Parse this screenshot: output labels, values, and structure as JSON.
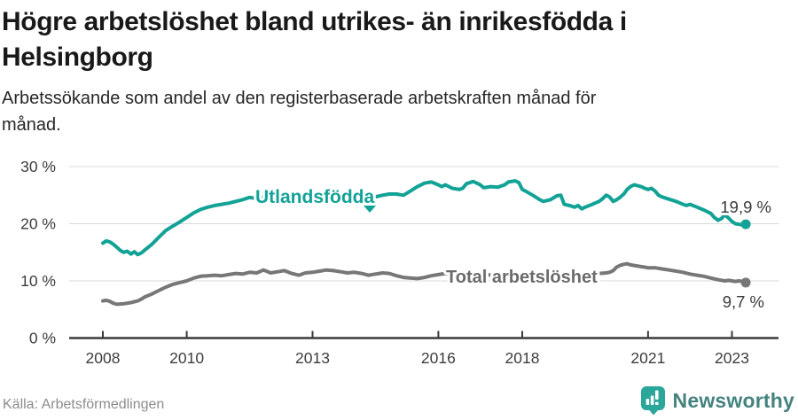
{
  "header": {
    "title_lines": [
      "Högre arbetslöshet bland utrikes- än inrikesfödda i",
      "Helsingborg"
    ],
    "subtitle_lines": [
      "Arbetssökande som andel av den registerbaserade arbetskraften månad för",
      "månad."
    ]
  },
  "footer": {
    "source": "Källa: Arbetsförmedlingen",
    "brand": "Newsworthy"
  },
  "colors": {
    "accent_teal": "#13a296",
    "neutral_gray": "#777777",
    "gray_label": "#6b6b6b",
    "grid": "#d8d8d8",
    "axis": "#3a3a3a",
    "tick_label": "#3d3d3d",
    "value_label": "#3a3a3a",
    "brand_icon_teal": "#2aa69b",
    "brand_text_teal": "#45837f"
  },
  "chart_data": {
    "type": "line",
    "title": "Högre arbetslöshet bland utrikes- än inrikesfödda i Helsingborg",
    "subtitle": "Arbetssökande som andel av den registerbaserade arbetskraften månad för månad.",
    "x_unit": "decimal_year",
    "xlim": [
      2007.2,
      2024.1
    ],
    "ylim": [
      0,
      31.4
    ],
    "grid": "horizontal",
    "legend_position": "inline-labels",
    "yticks": [
      {
        "value": 0,
        "label": "0 %"
      },
      {
        "value": 10,
        "label": "10 %"
      },
      {
        "value": 20,
        "label": "20 %"
      },
      {
        "value": 30,
        "label": "30 %"
      }
    ],
    "xticks": [
      {
        "value": 2008,
        "label": "2008"
      },
      {
        "value": 2010,
        "label": "2010"
      },
      {
        "value": 2013,
        "label": "2013"
      },
      {
        "value": 2016,
        "label": "2016"
      },
      {
        "value": 2018,
        "label": "2018"
      },
      {
        "value": 2021,
        "label": "2021"
      },
      {
        "value": 2023,
        "label": "2023"
      }
    ],
    "series": [
      {
        "name": "Utlandsfödda",
        "label": "Utlandsfödda",
        "end_label": "19,9 %",
        "end_value": 19.9,
        "color": "#13a296",
        "label_color": "#13a296",
        "points": [
          [
            2008.0,
            16.6
          ],
          [
            2008.08,
            17.0
          ],
          [
            2008.17,
            16.8
          ],
          [
            2008.25,
            16.4
          ],
          [
            2008.33,
            15.9
          ],
          [
            2008.42,
            15.3
          ],
          [
            2008.5,
            15.0
          ],
          [
            2008.58,
            15.2
          ],
          [
            2008.67,
            14.7
          ],
          [
            2008.75,
            15.1
          ],
          [
            2008.83,
            14.6
          ],
          [
            2008.92,
            14.9
          ],
          [
            2009.0,
            15.4
          ],
          [
            2009.17,
            16.4
          ],
          [
            2009.33,
            17.6
          ],
          [
            2009.5,
            18.8
          ],
          [
            2009.67,
            19.6
          ],
          [
            2009.83,
            20.3
          ],
          [
            2010.0,
            21.1
          ],
          [
            2010.17,
            21.9
          ],
          [
            2010.33,
            22.5
          ],
          [
            2010.5,
            22.9
          ],
          [
            2010.67,
            23.2
          ],
          [
            2010.83,
            23.4
          ],
          [
            2011.0,
            23.6
          ],
          [
            2011.17,
            23.9
          ],
          [
            2011.33,
            24.2
          ],
          [
            2011.5,
            24.6
          ],
          [
            2011.67,
            24.4
          ],
          [
            2011.83,
            24.7
          ],
          [
            2012.0,
            24.9
          ],
          [
            2012.17,
            25.1
          ],
          [
            2012.33,
            24.8
          ],
          [
            2012.5,
            25.0
          ],
          [
            2012.67,
            25.2
          ],
          [
            2012.83,
            24.9
          ],
          [
            2013.0,
            25.1
          ],
          [
            2013.17,
            24.8
          ],
          [
            2013.33,
            25.0
          ],
          [
            2013.5,
            24.9
          ],
          [
            2013.67,
            25.1
          ],
          [
            2013.83,
            24.7
          ],
          [
            2014.0,
            24.9
          ],
          [
            2014.17,
            24.6
          ],
          [
            2014.33,
            24.4
          ],
          [
            2014.5,
            24.7
          ],
          [
            2014.67,
            25.0
          ],
          [
            2014.83,
            25.2
          ],
          [
            2015.0,
            25.2
          ],
          [
            2015.17,
            25.0
          ],
          [
            2015.33,
            25.7
          ],
          [
            2015.5,
            26.5
          ],
          [
            2015.67,
            27.1
          ],
          [
            2015.83,
            27.3
          ],
          [
            2016.0,
            26.8
          ],
          [
            2016.08,
            26.5
          ],
          [
            2016.17,
            26.8
          ],
          [
            2016.33,
            26.2
          ],
          [
            2016.5,
            26.0
          ],
          [
            2016.58,
            26.2
          ],
          [
            2016.67,
            27.0
          ],
          [
            2016.83,
            27.4
          ],
          [
            2017.0,
            26.8
          ],
          [
            2017.08,
            26.3
          ],
          [
            2017.25,
            26.5
          ],
          [
            2017.42,
            26.4
          ],
          [
            2017.58,
            26.8
          ],
          [
            2017.67,
            27.3
          ],
          [
            2017.83,
            27.5
          ],
          [
            2017.92,
            27.2
          ],
          [
            2018.0,
            26.0
          ],
          [
            2018.08,
            25.7
          ],
          [
            2018.25,
            25.0
          ],
          [
            2018.42,
            24.2
          ],
          [
            2018.5,
            23.9
          ],
          [
            2018.67,
            24.2
          ],
          [
            2018.83,
            24.9
          ],
          [
            2018.92,
            25.0
          ],
          [
            2019.0,
            23.4
          ],
          [
            2019.17,
            23.1
          ],
          [
            2019.25,
            22.9
          ],
          [
            2019.33,
            23.2
          ],
          [
            2019.42,
            22.6
          ],
          [
            2019.5,
            22.9
          ],
          [
            2019.67,
            23.4
          ],
          [
            2019.83,
            23.9
          ],
          [
            2019.92,
            24.4
          ],
          [
            2020.0,
            25.0
          ],
          [
            2020.08,
            24.7
          ],
          [
            2020.17,
            23.9
          ],
          [
            2020.25,
            24.2
          ],
          [
            2020.33,
            24.6
          ],
          [
            2020.42,
            25.2
          ],
          [
            2020.5,
            26.0
          ],
          [
            2020.58,
            26.5
          ],
          [
            2020.67,
            26.8
          ],
          [
            2020.83,
            26.5
          ],
          [
            2020.92,
            26.2
          ],
          [
            2021.0,
            26.0
          ],
          [
            2021.08,
            26.2
          ],
          [
            2021.17,
            25.7
          ],
          [
            2021.25,
            25.0
          ],
          [
            2021.33,
            24.7
          ],
          [
            2021.5,
            24.3
          ],
          [
            2021.67,
            23.9
          ],
          [
            2021.83,
            23.4
          ],
          [
            2021.92,
            23.2
          ],
          [
            2022.0,
            23.4
          ],
          [
            2022.17,
            22.9
          ],
          [
            2022.33,
            22.4
          ],
          [
            2022.5,
            21.8
          ],
          [
            2022.58,
            21.1
          ],
          [
            2022.67,
            20.6
          ],
          [
            2022.75,
            20.9
          ],
          [
            2022.83,
            21.6
          ],
          [
            2022.92,
            21.0
          ],
          [
            2023.0,
            20.4
          ],
          [
            2023.08,
            20.0
          ],
          [
            2023.17,
            19.9
          ],
          [
            2023.25,
            19.8
          ],
          [
            2023.33,
            19.9
          ]
        ]
      },
      {
        "name": "Total arbetslöshet",
        "label": "Total arbetslöshet",
        "end_label": "9,7 %",
        "end_value": 9.7,
        "color": "#777777",
        "label_color": "#6b6b6b",
        "points": [
          [
            2008.0,
            6.5
          ],
          [
            2008.08,
            6.6
          ],
          [
            2008.17,
            6.4
          ],
          [
            2008.25,
            6.1
          ],
          [
            2008.33,
            5.9
          ],
          [
            2008.5,
            6.0
          ],
          [
            2008.67,
            6.2
          ],
          [
            2008.83,
            6.5
          ],
          [
            2008.92,
            6.8
          ],
          [
            2009.0,
            7.2
          ],
          [
            2009.17,
            7.7
          ],
          [
            2009.33,
            8.3
          ],
          [
            2009.5,
            8.9
          ],
          [
            2009.67,
            9.4
          ],
          [
            2009.83,
            9.7
          ],
          [
            2010.0,
            10.0
          ],
          [
            2010.17,
            10.5
          ],
          [
            2010.33,
            10.8
          ],
          [
            2010.5,
            10.9
          ],
          [
            2010.67,
            11.0
          ],
          [
            2010.83,
            10.9
          ],
          [
            2011.0,
            11.1
          ],
          [
            2011.17,
            11.3
          ],
          [
            2011.33,
            11.2
          ],
          [
            2011.5,
            11.5
          ],
          [
            2011.67,
            11.4
          ],
          [
            2011.83,
            11.9
          ],
          [
            2012.0,
            11.4
          ],
          [
            2012.17,
            11.6
          ],
          [
            2012.33,
            11.8
          ],
          [
            2012.5,
            11.3
          ],
          [
            2012.67,
            11.0
          ],
          [
            2012.83,
            11.4
          ],
          [
            2013.0,
            11.5
          ],
          [
            2013.17,
            11.7
          ],
          [
            2013.33,
            11.9
          ],
          [
            2013.5,
            11.8
          ],
          [
            2013.67,
            11.6
          ],
          [
            2013.83,
            11.4
          ],
          [
            2014.0,
            11.5
          ],
          [
            2014.17,
            11.3
          ],
          [
            2014.33,
            11.0
          ],
          [
            2014.5,
            11.2
          ],
          [
            2014.67,
            11.4
          ],
          [
            2014.83,
            11.3
          ],
          [
            2015.0,
            10.9
          ],
          [
            2015.17,
            10.6
          ],
          [
            2015.33,
            10.5
          ],
          [
            2015.5,
            10.4
          ],
          [
            2015.67,
            10.6
          ],
          [
            2015.83,
            10.9
          ],
          [
            2016.0,
            11.1
          ],
          [
            2016.17,
            11.3
          ],
          [
            2016.33,
            11.2
          ],
          [
            2016.5,
            11.4
          ],
          [
            2016.67,
            11.3
          ],
          [
            2016.83,
            11.2
          ],
          [
            2017.0,
            11.3
          ],
          [
            2017.17,
            11.1
          ],
          [
            2017.33,
            10.9
          ],
          [
            2017.5,
            11.0
          ],
          [
            2017.67,
            11.1
          ],
          [
            2017.83,
            11.0
          ],
          [
            2018.0,
            11.1
          ],
          [
            2018.17,
            10.9
          ],
          [
            2018.33,
            10.8
          ],
          [
            2018.5,
            10.7
          ],
          [
            2018.67,
            10.8
          ],
          [
            2018.83,
            10.9
          ],
          [
            2019.0,
            10.8
          ],
          [
            2019.17,
            10.9
          ],
          [
            2019.33,
            11.0
          ],
          [
            2019.5,
            11.1
          ],
          [
            2019.67,
            11.2
          ],
          [
            2019.83,
            11.3
          ],
          [
            2020.0,
            11.4
          ],
          [
            2020.08,
            11.5
          ],
          [
            2020.17,
            11.8
          ],
          [
            2020.25,
            12.4
          ],
          [
            2020.33,
            12.7
          ],
          [
            2020.42,
            12.9
          ],
          [
            2020.5,
            13.0
          ],
          [
            2020.58,
            12.8
          ],
          [
            2020.67,
            12.7
          ],
          [
            2020.83,
            12.5
          ],
          [
            2020.92,
            12.4
          ],
          [
            2021.0,
            12.3
          ],
          [
            2021.17,
            12.3
          ],
          [
            2021.33,
            12.1
          ],
          [
            2021.5,
            11.9
          ],
          [
            2021.67,
            11.7
          ],
          [
            2021.83,
            11.5
          ],
          [
            2022.0,
            11.2
          ],
          [
            2022.17,
            11.0
          ],
          [
            2022.33,
            10.8
          ],
          [
            2022.5,
            10.5
          ],
          [
            2022.67,
            10.2
          ],
          [
            2022.83,
            10.0
          ],
          [
            2022.92,
            10.1
          ],
          [
            2023.0,
            10.0
          ],
          [
            2023.08,
            9.9
          ],
          [
            2023.17,
            10.0
          ],
          [
            2023.25,
            9.9
          ],
          [
            2023.33,
            9.7
          ]
        ]
      }
    ]
  }
}
